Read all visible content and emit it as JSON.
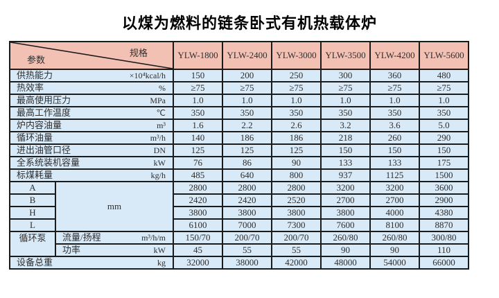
{
  "title": "以煤为燃料的链条卧式有机热载体炉",
  "colors": {
    "header_bg": "#f3c1b4",
    "body_bg": "#d8e9f7",
    "border": "#1b1b1b",
    "text": "#2e2e2e"
  },
  "table": {
    "corner": {
      "top_right": "规格",
      "bottom_left": "参数"
    },
    "columns": [
      "YLW-1800",
      "YLW-2400",
      "YLW-3000",
      "YLW-3500",
      "YLW-4200",
      "YLW-5600"
    ],
    "rows": [
      {
        "label": "供热能力",
        "unit": "×10⁴kcal/h",
        "values": [
          "150",
          "200",
          "250",
          "300",
          "360",
          "480"
        ]
      },
      {
        "label": "热效率",
        "unit": "%",
        "values": [
          "≥75",
          "≥75",
          "≥75",
          "≥75",
          "≥75",
          "≥75"
        ]
      },
      {
        "label": "最高使用压力",
        "unit": "MPa",
        "values": [
          "1.0",
          "1.0",
          "1.0",
          "1.0",
          "1.0",
          "1.0"
        ]
      },
      {
        "label": "最高工作温度",
        "unit": "℃",
        "values": [
          "350",
          "350",
          "350",
          "350",
          "350",
          "350"
        ]
      },
      {
        "label": "炉内容油量",
        "unit": "m³",
        "values": [
          "1.6",
          "2.2",
          "2.6",
          "3.2",
          "3.6",
          "5.0"
        ]
      },
      {
        "label": "循环油量",
        "unit": "m³/h",
        "values": [
          "140",
          "186",
          "186",
          "218",
          "260",
          "290"
        ]
      },
      {
        "label": "进出油管口径",
        "unit": "DN",
        "values": [
          "125",
          "125",
          "125",
          "150",
          "150",
          "150"
        ]
      },
      {
        "label": "全系统装机容量",
        "unit": "kW",
        "values": [
          "76",
          "86",
          "90",
          "133",
          "133",
          "175"
        ]
      },
      {
        "label": "标煤耗量",
        "unit": "kg/h",
        "values": [
          "485",
          "640",
          "800",
          "937",
          "1125",
          "1500"
        ]
      }
    ],
    "dimension_rows": {
      "unit": "mm",
      "rows": [
        {
          "label": "A",
          "values": [
            "2800",
            "2800",
            "2800",
            "3200",
            "3200",
            "3600"
          ]
        },
        {
          "label": "B",
          "values": [
            "2420",
            "2420",
            "2520",
            "2700",
            "2700",
            "2900"
          ]
        },
        {
          "label": "H",
          "values": [
            "3800",
            "3800",
            "3800",
            "3800",
            "4000",
            "4380"
          ]
        },
        {
          "label": "L",
          "values": [
            "6100",
            "7000",
            "7300",
            "7600",
            "8100",
            "8870"
          ]
        }
      ]
    },
    "pump_rows": {
      "group_label": "循环泵",
      "rows": [
        {
          "label": "流量/扬程",
          "unit": "m³/h/m",
          "values": [
            "150/70",
            "200/70",
            "200/70",
            "260/80",
            "260/80",
            "300/80"
          ]
        },
        {
          "label": "功率",
          "unit": "kW",
          "values": [
            "45",
            "55",
            "55",
            "90",
            "90",
            "110"
          ]
        }
      ]
    },
    "footer_row": {
      "label": "设备总重",
      "unit": "kg",
      "values": [
        "32000",
        "38000",
        "42000",
        "48000",
        "54000",
        "66000"
      ]
    }
  }
}
